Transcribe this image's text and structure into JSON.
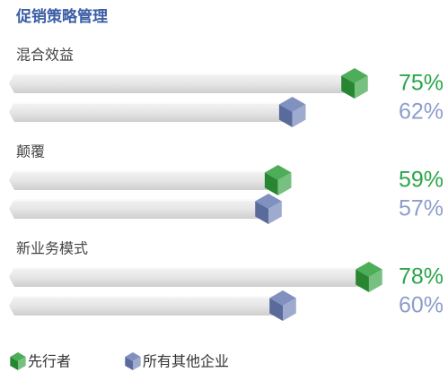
{
  "chart_data": {
    "type": "bar",
    "title": "促销策略管理",
    "categories": [
      "混合效益",
      "颠覆",
      "新业务模式"
    ],
    "series": [
      {
        "name": "先行者",
        "color": "#2f9e3c",
        "label_color": "#2aa64a",
        "values": [
          75,
          59,
          78
        ],
        "value_labels": [
          "75%",
          "59%",
          "78%"
        ]
      },
      {
        "name": "所有其他企业",
        "color": "#6a7db5",
        "label_color": "#8c9dcb",
        "values": [
          62,
          57,
          60
        ],
        "value_labels": [
          "62%",
          "57%",
          "60%"
        ]
      }
    ]
  }
}
